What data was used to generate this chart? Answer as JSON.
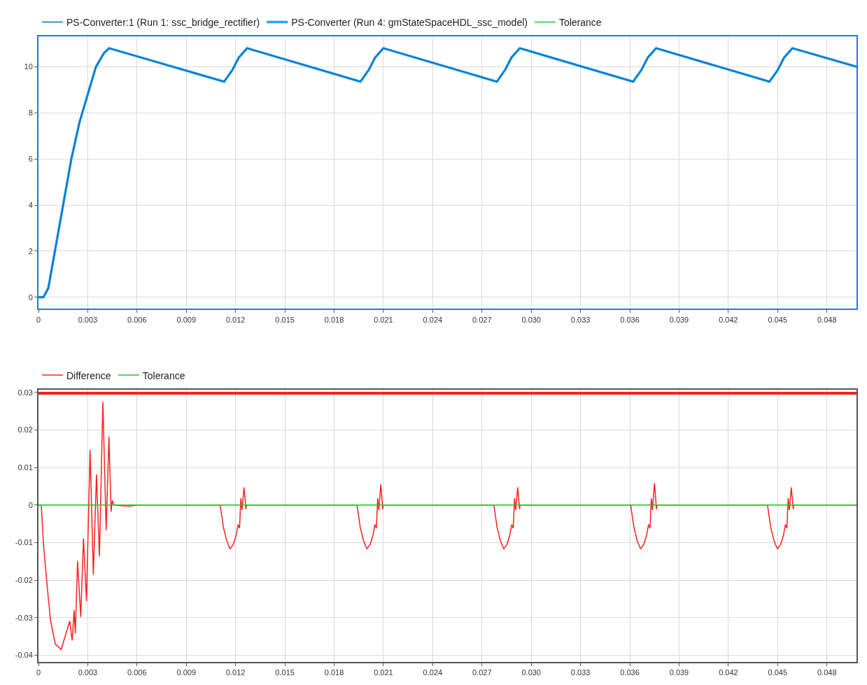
{
  "chart_data": [
    {
      "type": "line",
      "legend": "top left",
      "grid": true,
      "marker": "none",
      "line_style": "solid",
      "xlim": [
        0,
        0.0498
      ],
      "ylim": [
        -0.5,
        11.3
      ],
      "xticks": [
        0,
        0.003,
        0.006,
        0.009,
        0.012,
        0.015,
        0.018,
        0.021,
        0.024,
        0.027,
        {
          "value": 0.03,
          "label": "0.030"
        },
        0.033,
        0.036,
        0.039,
        0.042,
        0.045,
        0.048
      ],
      "yticks": [
        0,
        2,
        4,
        6,
        8,
        10
      ],
      "x": [
        0,
        0.0003,
        0.0006,
        0.001,
        0.0015,
        0.002,
        0.0025,
        0.003,
        0.0035,
        0.004,
        0.0043,
        0.0113,
        0.0118,
        0.0122,
        0.0127,
        0.0196,
        0.0201,
        0.0205,
        0.021,
        0.0279,
        0.0284,
        0.0288,
        0.0293,
        0.0362,
        0.0367,
        0.0371,
        0.0376,
        0.0445,
        0.045,
        0.0454,
        0.0459,
        0.0498
      ],
      "series": [
        {
          "name": "PS-Converter:1 (Run 1: ssc_bridge_rectifier)",
          "color": "#0a6ebd",
          "values": [
            0,
            0,
            0.4,
            2.0,
            4.0,
            6.0,
            7.6,
            8.8,
            10.0,
            10.6,
            10.8,
            9.35,
            9.85,
            10.4,
            10.8,
            9.35,
            9.85,
            10.4,
            10.8,
            9.35,
            9.85,
            10.4,
            10.8,
            9.35,
            9.85,
            10.4,
            10.8,
            9.35,
            9.85,
            10.4,
            10.8,
            10.0
          ]
        },
        {
          "name": "PS-Converter (Run 4: gmStateSpaceHDL_ssc_model)",
          "color": "#29a3f5",
          "values": [
            0,
            0,
            0.4,
            2.0,
            4.0,
            6.0,
            7.6,
            8.8,
            10.0,
            10.6,
            10.8,
            9.35,
            9.85,
            10.4,
            10.8,
            9.35,
            9.85,
            10.4,
            10.8,
            9.35,
            9.85,
            10.4,
            10.8,
            9.35,
            9.85,
            10.4,
            10.8,
            9.35,
            9.85,
            10.4,
            10.8,
            10.0
          ]
        },
        {
          "name": "Tolerance",
          "color": "#22c32e",
          "values": [
            null,
            null,
            null,
            null,
            null,
            null,
            null,
            null,
            null,
            null,
            null,
            null,
            null,
            null,
            null,
            null,
            null,
            null,
            null,
            null,
            null,
            null,
            null,
            null,
            null,
            null,
            null,
            null,
            null,
            null,
            null,
            null
          ]
        }
      ]
    },
    {
      "type": "line",
      "legend": "top left",
      "grid": true,
      "marker": "none",
      "line_style": "solid",
      "xlim": [
        0,
        0.0498
      ],
      "ylim": [
        -0.0418,
        0.0307
      ],
      "xticks": [
        0,
        0.003,
        0.006,
        0.009,
        0.012,
        0.015,
        0.018,
        0.021,
        0.024,
        0.027,
        {
          "value": 0.03,
          "label": "0.030"
        },
        0.033,
        0.036,
        0.039,
        0.042,
        0.045,
        0.048
      ],
      "yticks": [
        -0.04,
        -0.03,
        -0.02,
        -0.01,
        0,
        0.01,
        0.02,
        0.03
      ],
      "ref_lines": [
        {
          "axis": "y",
          "value": 0.0298,
          "label": null,
          "color": "#ff2020"
        }
      ],
      "series": [
        {
          "name": "Difference",
          "color": "#ff2020",
          "x": [
            0,
            0.00017,
            0.0003,
            0.00052,
            0.00073,
            0.00102,
            0.00138,
            0.0019,
            0.00205,
            0.00217,
            0.00224,
            0.00238,
            0.00257,
            0.00274,
            0.00292,
            0.00314,
            0.00334,
            0.00353,
            0.00371,
            0.00392,
            0.00412,
            0.00429,
            0.00442,
            0.00449,
            0.0046,
            0.0055,
            0.006,
            0.01106,
            0.01126,
            0.01146,
            0.01166,
            0.01186,
            0.01203,
            0.01215,
            0.01224,
            0.01232,
            0.01239,
            0.01251,
            0.01263,
            0.01266,
            0.01939,
            0.01959,
            0.01979,
            0.01999,
            0.02019,
            0.02036,
            0.02048,
            0.02057,
            0.02065,
            0.02072,
            0.02084,
            0.02096,
            0.02099,
            0.02772,
            0.02792,
            0.02812,
            0.02832,
            0.02852,
            0.02869,
            0.02881,
            0.0289,
            0.02898,
            0.02905,
            0.02917,
            0.02929,
            0.02932,
            0.03605,
            0.03625,
            0.03645,
            0.03665,
            0.03685,
            0.03702,
            0.03714,
            0.03723,
            0.03731,
            0.03738,
            0.0375,
            0.03762,
            0.03765,
            0.04438,
            0.04458,
            0.04478,
            0.04498,
            0.04518,
            0.04535,
            0.04547,
            0.04556,
            0.04564,
            0.04571,
            0.04583,
            0.04595,
            0.04598,
            0.0498
          ],
          "values": [
            0,
            0,
            -0.0102,
            -0.0212,
            -0.0307,
            -0.037,
            -0.0385,
            -0.0309,
            -0.0361,
            -0.028,
            -0.0342,
            -0.0149,
            -0.0298,
            -0.0089,
            -0.0256,
            0.0147,
            -0.0186,
            0.0082,
            -0.0137,
            0.0275,
            -0.0067,
            0.0182,
            -0.0018,
            0.0012,
            0,
            -0.0003,
            0,
            0,
            -0.006,
            -0.0095,
            -0.0117,
            -0.0105,
            -0.0081,
            -0.0052,
            -0.0062,
            0.0018,
            -0.0014,
            0.0047,
            -0.0011,
            0,
            0,
            -0.006,
            -0.0095,
            -0.0117,
            -0.0105,
            -0.0081,
            -0.0052,
            -0.0062,
            0.0018,
            -0.0014,
            0.0055,
            -0.0011,
            0,
            0,
            -0.006,
            -0.0095,
            -0.0117,
            -0.0105,
            -0.0081,
            -0.0052,
            -0.0062,
            0.0018,
            -0.0014,
            0.0047,
            -0.0011,
            0,
            0,
            -0.006,
            -0.0095,
            -0.0117,
            -0.0105,
            -0.0081,
            -0.0052,
            -0.0062,
            0.0018,
            -0.0014,
            0.0058,
            -0.0011,
            0,
            0,
            -0.006,
            -0.0095,
            -0.0117,
            -0.0105,
            -0.0081,
            -0.0052,
            -0.0062,
            0.0018,
            -0.0014,
            0.0047,
            -0.0011,
            0,
            0
          ]
        },
        {
          "name": "Tolerance",
          "color": "#22c32e",
          "x": [
            0,
            0.0498
          ],
          "values": [
            0,
            0
          ]
        }
      ]
    }
  ]
}
